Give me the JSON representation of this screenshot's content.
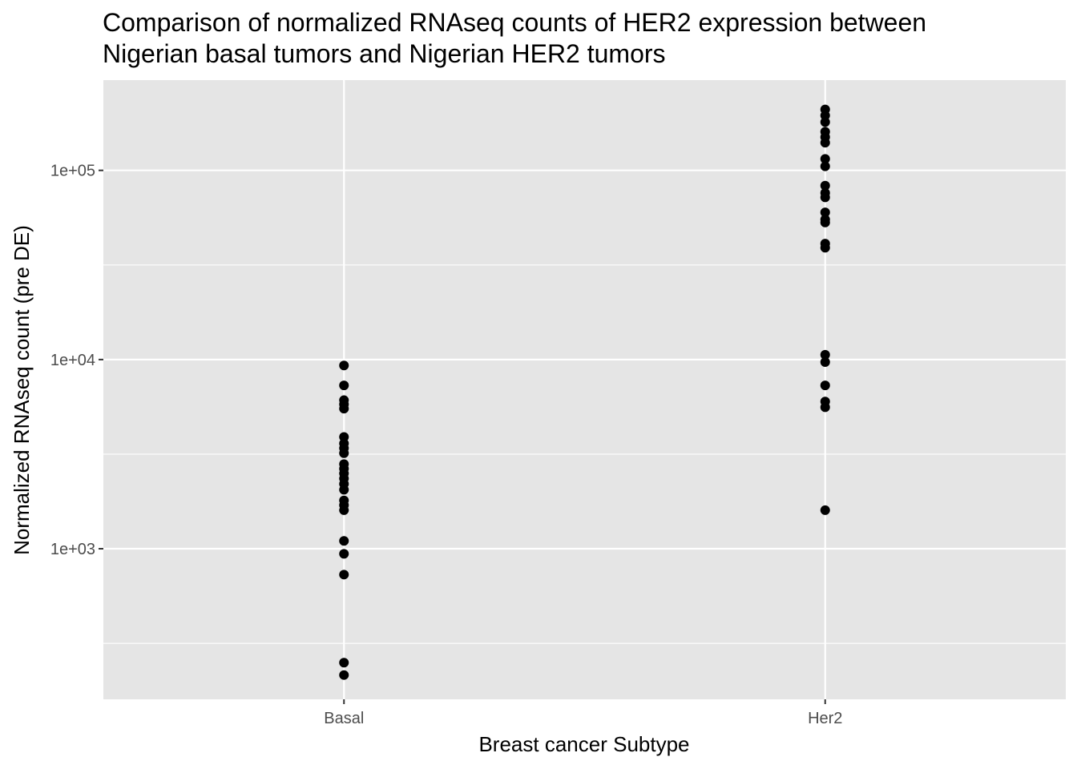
{
  "chart_data": {
    "type": "scatter",
    "title_lines": [
      "Comparison of normalized RNAseq counts of HER2 expression between",
      "Nigerian basal tumors and Nigerian HER2 tumors"
    ],
    "xlabel": "Breast cancer Subtype",
    "ylabel": "Normalized RNAseq count (pre DE)",
    "y_scale": "log10",
    "ylim": [
      160,
      300000
    ],
    "y_major_ticks": [
      1000,
      10000,
      100000
    ],
    "y_tick_labels": [
      "1e+03",
      "1e+04",
      "1e+05"
    ],
    "y_minor_ticks": [
      316,
      3162,
      31623
    ],
    "categories": [
      "Basal",
      "Her2"
    ],
    "grid": true,
    "panel_background": "#e5e5e5",
    "grid_color": "#ffffff",
    "point_color": "#000000",
    "series": [
      {
        "category": "Basal",
        "values": [
          9300,
          7300,
          6100,
          5800,
          5500,
          3900,
          3600,
          3400,
          3200,
          2800,
          2650,
          2500,
          2350,
          2200,
          2050,
          1800,
          1700,
          1600,
          1100,
          940,
          730,
          250,
          215
        ]
      },
      {
        "category": "Her2",
        "values": [
          210000,
          195000,
          180000,
          160000,
          150000,
          140000,
          115000,
          105000,
          83000,
          76000,
          72000,
          60000,
          55000,
          53000,
          41000,
          39000,
          10600,
          9700,
          7300,
          6000,
          5600,
          1600
        ]
      }
    ]
  }
}
